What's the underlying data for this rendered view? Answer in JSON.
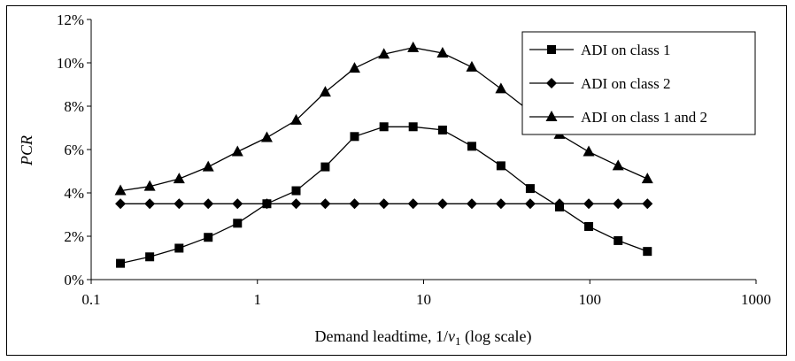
{
  "chart_data": {
    "type": "line",
    "xlabel": "Demand leadtime, 1/ν₁ (log scale)",
    "xlabel_parts": {
      "prefix": "Demand leadtime, 1/",
      "symbol": "ν",
      "subscript": "1",
      "suffix": " (log scale)"
    },
    "ylabel": "PCR",
    "x_scale": "log",
    "xlim": [
      0.1,
      1000
    ],
    "ylim": [
      0,
      0.12
    ],
    "x_ticks": [
      "0.1",
      "1",
      "10",
      "100",
      "1000"
    ],
    "x_tick_values": [
      0.1,
      1,
      10,
      100,
      1000
    ],
    "y_ticks": [
      "0%",
      "2%",
      "4%",
      "6%",
      "8%",
      "10%",
      "12%"
    ],
    "y_tick_values": [
      0,
      0.02,
      0.04,
      0.06,
      0.08,
      0.1,
      0.12
    ],
    "grid": false,
    "legend_position": "top-right",
    "x": [
      0.15,
      0.225,
      0.338,
      0.506,
      0.759,
      1.14,
      1.71,
      2.56,
      3.84,
      5.77,
      8.65,
      13.0,
      19.5,
      29.2,
      43.8,
      65.7,
      98.5,
      148,
      222
    ],
    "series": [
      {
        "name": "ADI on class 1",
        "marker": "square",
        "values": [
          0.0075,
          0.0105,
          0.0145,
          0.0195,
          0.026,
          0.035,
          0.041,
          0.052,
          0.066,
          0.0705,
          0.0705,
          0.069,
          0.0615,
          0.0525,
          0.042,
          0.0335,
          0.0245,
          0.018,
          0.013
        ]
      },
      {
        "name": "ADI on class 2",
        "marker": "diamond",
        "values": [
          0.035,
          0.035,
          0.035,
          0.035,
          0.035,
          0.035,
          0.035,
          0.035,
          0.035,
          0.035,
          0.035,
          0.035,
          0.035,
          0.035,
          0.035,
          0.035,
          0.035,
          0.035,
          0.035
        ]
      },
      {
        "name": "ADI on class 1 and 2",
        "marker": "triangle",
        "values": [
          0.041,
          0.043,
          0.0465,
          0.052,
          0.059,
          0.0655,
          0.0735,
          0.0865,
          0.0975,
          0.104,
          0.107,
          0.1045,
          0.098,
          0.088,
          0.0775,
          0.067,
          0.059,
          0.0525,
          0.0465
        ]
      }
    ]
  }
}
